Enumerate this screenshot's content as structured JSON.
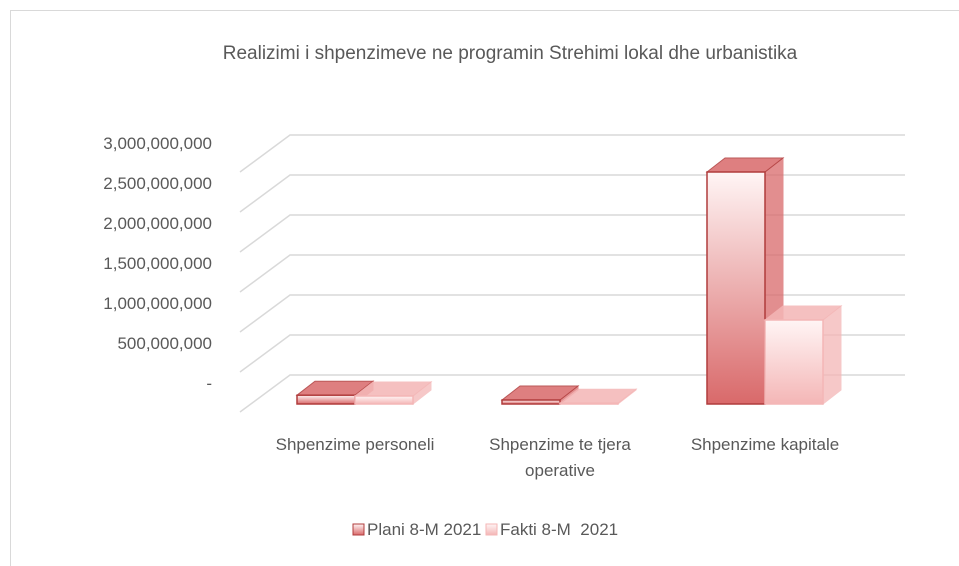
{
  "chart_data": {
    "type": "bar3d",
    "title": "Realizimi i shpenzimeve  ne programin Strehimi lokal dhe urbanistika",
    "categories": [
      "Shpenzime personeli",
      "Shpenzime te tjera operative",
      "Shpenzime kapitale"
    ],
    "series": [
      {
        "name": "Plani 8-M 2021",
        "color": "#d9696a",
        "values": [
          110000000,
          50000000,
          2900000000
        ]
      },
      {
        "name": "Fakti 8-M  2021",
        "color": "#f4b6b6",
        "values": [
          100000000,
          10000000,
          1050000000
        ]
      }
    ],
    "ylim": [
      0,
      3000000000
    ],
    "yticks": [
      {
        "value": 0,
        "label": "-"
      },
      {
        "value": 500000000,
        "label": "500,000,000"
      },
      {
        "value": 1000000000,
        "label": "1,000,000,000"
      },
      {
        "value": 1500000000,
        "label": "1,500,000,000"
      },
      {
        "value": 2000000000,
        "label": "2,000,000,000"
      },
      {
        "value": 2500000000,
        "label": "2,500,000,000"
      },
      {
        "value": 3000000000,
        "label": "3,000,000,000"
      }
    ],
    "grid": true,
    "legend": "bottom"
  }
}
